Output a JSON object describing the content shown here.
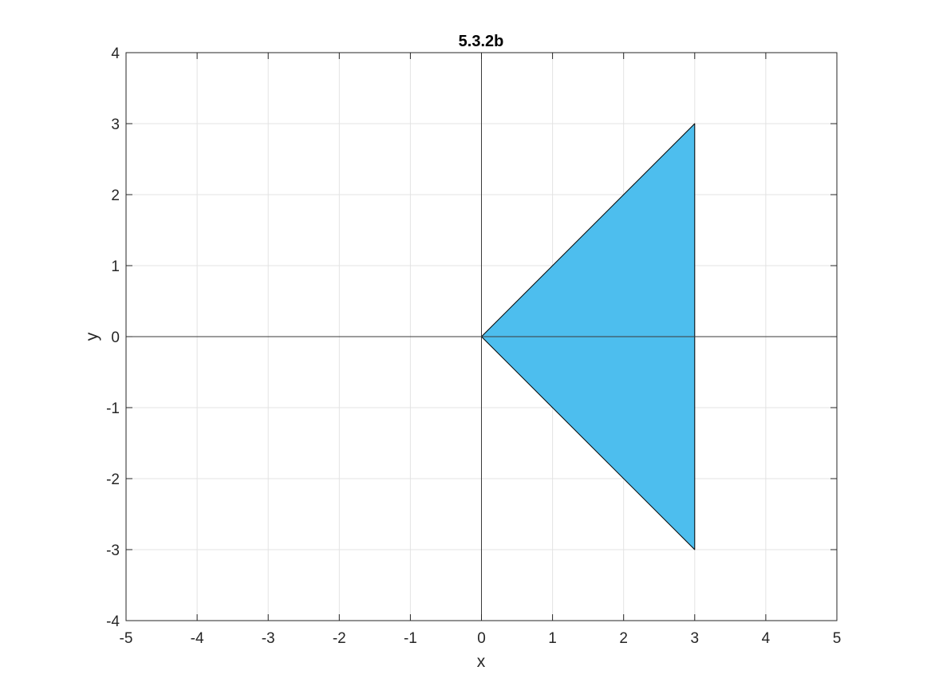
{
  "chart_data": {
    "type": "area",
    "title": "5.3.2b",
    "xlabel": "x",
    "ylabel": "y",
    "xlim": [
      -5,
      5
    ],
    "ylim": [
      -4,
      4
    ],
    "xticks": [
      "-5",
      "-4",
      "-3",
      "-2",
      "-1",
      "0",
      "1",
      "2",
      "3",
      "4",
      "5"
    ],
    "yticks": [
      "-4",
      "-3",
      "-2",
      "-1",
      "0",
      "1",
      "2",
      "3",
      "4"
    ],
    "grid": true,
    "axis_lines_through_origin": true,
    "polygon": {
      "vertices": [
        {
          "x": 0,
          "y": 0
        },
        {
          "x": 3,
          "y": 3
        },
        {
          "x": 3,
          "y": -3
        }
      ],
      "fill_color": "#4DBEEE",
      "edge_color": "#000000"
    }
  }
}
